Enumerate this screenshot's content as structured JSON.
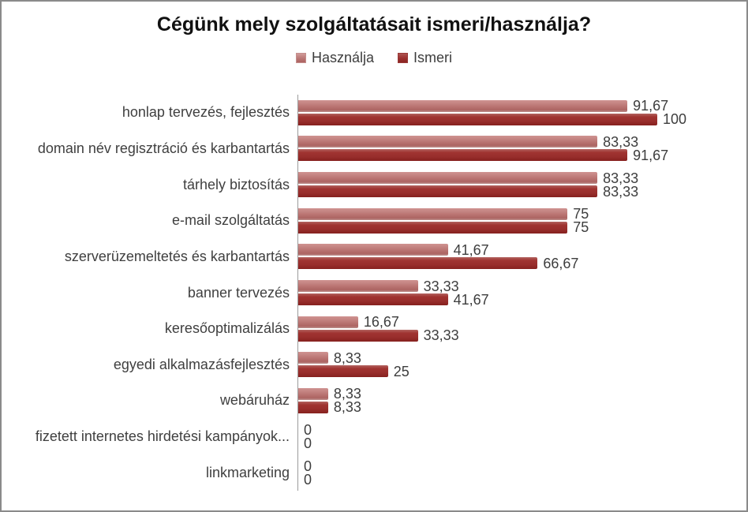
{
  "title": "Cégünk mely szolgáltatásait ismeri/használja?",
  "legend": {
    "items": [
      {
        "label": "Használja",
        "color": "#bd7775"
      },
      {
        "label": "Ismeri",
        "color": "#9a2e2c"
      }
    ]
  },
  "chart_data": {
    "type": "bar",
    "orientation": "horizontal",
    "title": "Cégünk mely szolgáltatásait ismeri/használja?",
    "xlabel": "",
    "ylabel": "",
    "xlim": [
      0,
      100
    ],
    "grid": false,
    "legend_position": "top",
    "value_axis_labels_visible": false,
    "decimal_separator": ",",
    "categories": [
      "honlap tervezés, fejlesztés",
      "domain név regisztráció és karbantartás",
      "tárhely biztosítás",
      "e-mail szolgáltatás",
      "szerverüzemeltetés és karbantartás",
      "banner tervezés",
      "keresőoptimalizálás",
      "egyedi alkalmazásfejlesztés",
      "webáruház",
      "fizetett internetes hirdetési kampányok...",
      "linkmarketing"
    ],
    "series": [
      {
        "name": "Használja",
        "color": "#bd7775",
        "values": [
          91.67,
          83.33,
          83.33,
          75,
          41.67,
          33.33,
          16.67,
          8.33,
          8.33,
          0,
          0
        ],
        "labels": [
          "91,67",
          "83,33",
          "83,33",
          "75",
          "41,67",
          "33,33",
          "16,67",
          "8,33",
          "8,33",
          "0",
          "0"
        ]
      },
      {
        "name": "Ismeri",
        "color": "#9a2e2c",
        "values": [
          100,
          91.67,
          83.33,
          75,
          66.67,
          41.67,
          33.33,
          25,
          8.33,
          0,
          0
        ],
        "labels": [
          "100",
          "91,67",
          "83,33",
          "75",
          "66,67",
          "41,67",
          "33,33",
          "25",
          "8,33",
          "0",
          "0"
        ]
      }
    ]
  }
}
